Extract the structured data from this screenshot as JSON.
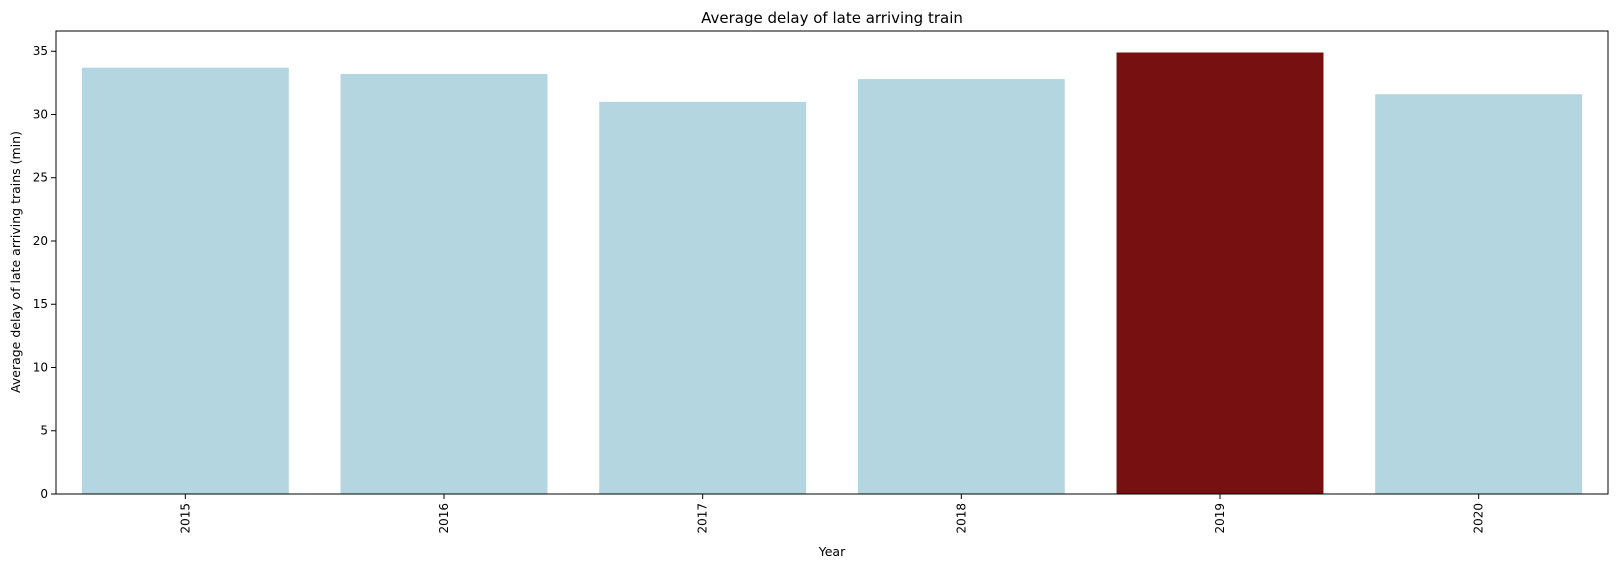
{
  "chart_data": {
    "type": "bar",
    "title": "Average delay of late arriving train",
    "xlabel": "Year",
    "ylabel": "Average delay of late arriving trains (min)",
    "categories": [
      "2015",
      "2016",
      "2017",
      "2018",
      "2019",
      "2020"
    ],
    "values": [
      33.7,
      33.2,
      31.0,
      32.8,
      34.9,
      31.6
    ],
    "ylim": [
      0,
      36.6
    ],
    "yticks": [
      0,
      5,
      10,
      15,
      20,
      25,
      30,
      35
    ],
    "grid": false,
    "legend": "none",
    "colors": {
      "default": "#b4d6e0",
      "highlight": "#771010",
      "highlight_category": "2019"
    }
  }
}
